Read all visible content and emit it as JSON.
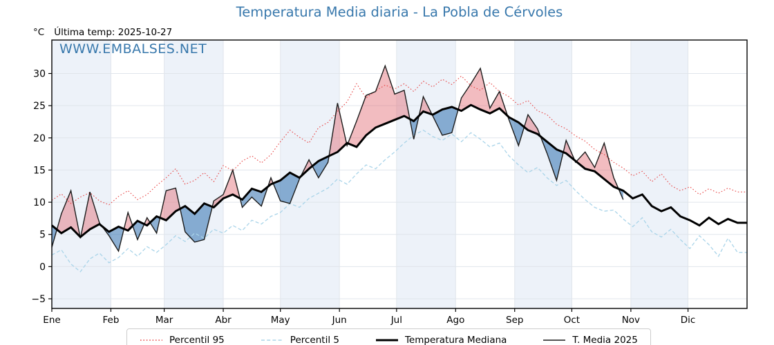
{
  "title": "Temperatura Media diaria - La Pobla de Cérvoles",
  "unit_label": "°C",
  "last_temp_label": "Última temp: 2025-10-27",
  "watermark": "WWW.EMBALSES.NET",
  "colors": {
    "title": "#3878ac",
    "watermark": "#3878ac",
    "band": "#edf2f9",
    "grid": "#e0e5eb",
    "axis": "#000000",
    "p95": "#e84545",
    "p5": "#a9d4e9",
    "median": "#000000",
    "t2025": "#1a1a1a",
    "fill_above": "rgba(226,106,116,0.45)",
    "fill_below": "rgba(58,119,179,0.58)",
    "legend_border": "#cccccc",
    "legend_bg": "#ffffff"
  },
  "legend": [
    {
      "label": "Percentil 95",
      "sample_style": "dotted",
      "sample_color": "#e84545",
      "sample_width": 1.5
    },
    {
      "label": "Percentil 5",
      "sample_style": "dashed",
      "sample_color": "#a9d4e9",
      "sample_width": 1.5
    },
    {
      "label": "Temperatura Mediana",
      "sample_style": "solid",
      "sample_color": "#000000",
      "sample_width": 3
    },
    {
      "label": "T. Media 2025",
      "sample_style": "solid",
      "sample_color": "#1a1a1a",
      "sample_width": 1.4
    }
  ],
  "chart_data": {
    "type": "line",
    "title": "Temperatura Media diaria - La Pobla de Cérvoles",
    "xlabel": "",
    "ylabel": "°C",
    "grid": true,
    "legend_position": "bottom",
    "x_axis": {
      "unit": "day_of_year",
      "xlim": [
        0,
        365
      ],
      "months": [
        {
          "label": "Ene",
          "start_day": 0,
          "shaded": true
        },
        {
          "label": "Feb",
          "start_day": 31,
          "shaded": false
        },
        {
          "label": "Mar",
          "start_day": 59,
          "shaded": true
        },
        {
          "label": "Abr",
          "start_day": 90,
          "shaded": false
        },
        {
          "label": "May",
          "start_day": 120,
          "shaded": true
        },
        {
          "label": "Jun",
          "start_day": 151,
          "shaded": false
        },
        {
          "label": "Jul",
          "start_day": 181,
          "shaded": true
        },
        {
          "label": "Ago",
          "start_day": 212,
          "shaded": false
        },
        {
          "label": "Sep",
          "start_day": 243,
          "shaded": true
        },
        {
          "label": "Oct",
          "start_day": 273,
          "shaded": false
        },
        {
          "label": "Nov",
          "start_day": 304,
          "shaded": true
        },
        {
          "label": "Dic",
          "start_day": 334,
          "shaded": false
        }
      ]
    },
    "y_axis": {
      "label": "°C",
      "ylim": [
        -6.5,
        35.2
      ],
      "ticks": [
        {
          "value": 30,
          "label": "30"
        },
        {
          "value": 25,
          "label": "25"
        },
        {
          "value": 20,
          "label": "20"
        },
        {
          "value": 15,
          "label": "15"
        },
        {
          "value": 10,
          "label": "10"
        },
        {
          "value": 5,
          "label": "5"
        },
        {
          "value": 0,
          "label": "0"
        },
        {
          "value": -5,
          "label": "−5"
        }
      ]
    },
    "series": [
      {
        "name": "Percentil 95",
        "style": "dotted",
        "color": "#e84545",
        "width": 1.1,
        "start_day": 0,
        "step_days": 5,
        "extend_to_right": true,
        "values": [
          10.3,
          11.3,
          9.8,
          10.8,
          11.5,
          10.2,
          9.6,
          10.9,
          11.8,
          10.4,
          11.2,
          12.6,
          13.8,
          15.2,
          12.8,
          13.4,
          14.6,
          13.2,
          15.7,
          14.9,
          16.4,
          17.2,
          16.1,
          17.4,
          19.4,
          21.2,
          20.1,
          19.2,
          21.6,
          22.4,
          24.1,
          25.6,
          28.4,
          26.2,
          27.3,
          28.2,
          27.6,
          28.4,
          27.2,
          28.8,
          27.9,
          29.1,
          28.3,
          29.6,
          28.1,
          27.4,
          28.6,
          27.2,
          26.4,
          25.1,
          25.8,
          24.2,
          23.6,
          22.1,
          21.4,
          20.3,
          19.5,
          18.2,
          17.4,
          16.2,
          15.3,
          14.1,
          14.8,
          13.2,
          14.4,
          12.6,
          11.8,
          12.4,
          11.2,
          12.1,
          11.4,
          12.2,
          11.6
        ]
      },
      {
        "name": "Percentil 5",
        "style": "dashed",
        "color": "#a9d4e9",
        "width": 1.3,
        "start_day": 0,
        "step_days": 5,
        "extend_to_right": true,
        "values": [
          1.8,
          2.6,
          0.4,
          -0.8,
          1.2,
          2.1,
          0.6,
          1.4,
          2.8,
          1.6,
          3.1,
          2.2,
          3.4,
          4.8,
          3.9,
          5.2,
          4.4,
          5.8,
          5.2,
          6.4,
          5.6,
          7.2,
          6.6,
          7.8,
          8.4,
          9.8,
          9.2,
          10.6,
          11.4,
          12.2,
          13.6,
          12.8,
          14.4,
          15.8,
          15.2,
          16.6,
          17.8,
          19.2,
          20.4,
          21.2,
          20.2,
          19.6,
          20.6,
          19.4,
          20.8,
          19.8,
          18.6,
          19.2,
          17.2,
          15.8,
          14.6,
          15.4,
          13.8,
          12.6,
          13.4,
          11.8,
          10.4,
          9.2,
          8.6,
          8.8,
          7.4,
          6.2,
          7.6,
          5.4,
          4.6,
          5.8,
          4.2,
          2.8,
          4.8,
          3.4,
          1.6,
          4.4,
          2.2
        ]
      },
      {
        "name": "Temperatura Mediana",
        "style": "solid",
        "color": "#000000",
        "width": 3,
        "start_day": 0,
        "step_days": 5,
        "extend_to_right": true,
        "values": [
          6.4,
          5.2,
          6.1,
          4.6,
          5.8,
          6.6,
          5.4,
          6.2,
          5.6,
          7.1,
          6.4,
          7.8,
          7.2,
          8.6,
          9.4,
          8.2,
          9.8,
          9.2,
          10.6,
          11.2,
          10.4,
          12.1,
          11.6,
          12.8,
          13.4,
          14.6,
          13.8,
          15.2,
          16.4,
          17.1,
          17.8,
          19.2,
          18.6,
          20.4,
          21.6,
          22.2,
          22.8,
          23.4,
          22.6,
          24.1,
          23.6,
          24.4,
          24.8,
          24.2,
          25.1,
          24.4,
          23.8,
          24.6,
          23.2,
          22.4,
          21.2,
          20.6,
          19.4,
          18.2,
          17.6,
          16.4,
          15.2,
          14.8,
          13.6,
          12.4,
          11.8,
          10.6,
          11.2,
          9.4,
          8.6,
          9.2,
          7.8,
          7.2,
          6.4,
          7.6,
          6.6,
          7.4,
          6.8
        ]
      },
      {
        "name": "T. Media 2025",
        "style": "solid",
        "color": "#1a1a1a",
        "width": 1.4,
        "start_day": 0,
        "step_days": 5,
        "extend_to_right": false,
        "values": [
          3.0,
          8.2,
          11.8,
          4.4,
          11.6,
          6.8,
          4.8,
          2.4,
          8.4,
          4.2,
          7.6,
          5.2,
          11.8,
          12.2,
          5.4,
          3.8,
          4.2,
          10.2,
          11.2,
          15.0,
          9.2,
          10.8,
          9.4,
          13.8,
          10.2,
          9.8,
          13.6,
          16.6,
          13.8,
          16.2,
          25.4,
          18.8,
          22.6,
          26.6,
          27.2,
          31.2,
          26.8,
          27.4,
          19.8,
          26.4,
          23.4,
          20.4,
          20.8,
          26.2,
          28.4,
          30.8,
          24.6,
          27.2,
          22.8,
          18.8,
          23.6,
          21.4,
          17.6,
          13.4,
          19.6,
          16.2,
          17.8,
          15.4,
          19.2,
          13.8,
          10.4
        ]
      }
    ],
    "fills": {
      "between": [
        "T. Media 2025",
        "Temperatura Mediana"
      ],
      "above_color": "rgba(226,106,116,0.45)",
      "below_color": "rgba(58,119,179,0.58)"
    }
  }
}
